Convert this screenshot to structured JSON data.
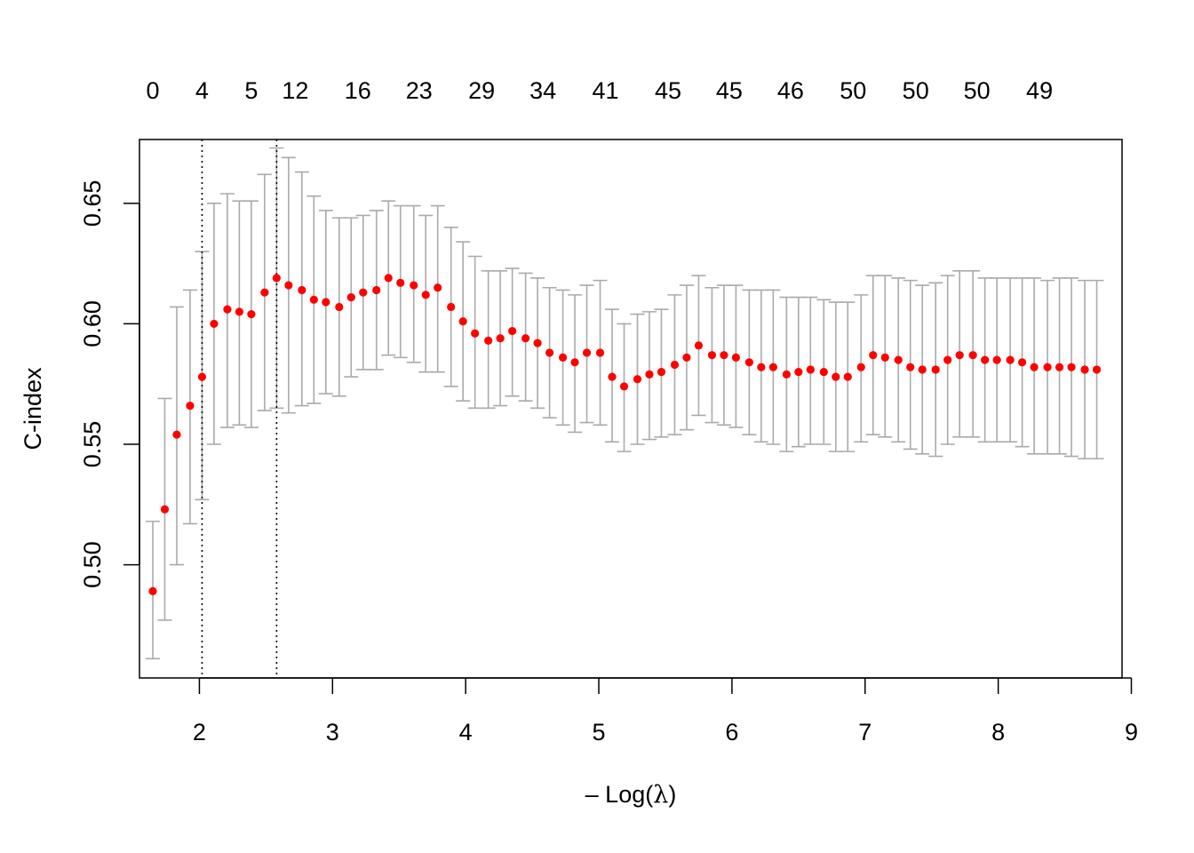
{
  "chart_data": {
    "type": "scatter",
    "xlabel_prefix": "– Log(",
    "xlabel_symbol": "λ",
    "xlabel_suffix": ")",
    "ylabel": "C-index",
    "xlim": [
      1.55,
      8.93
    ],
    "ylim": [
      0.453,
      0.6765
    ],
    "x_ticks": [
      2,
      3,
      4,
      5,
      6,
      7,
      8,
      9
    ],
    "y_ticks": [
      0.5,
      0.55,
      0.6,
      0.65
    ],
    "y_tick_labels": [
      "0.50",
      "0.55",
      "0.60",
      "0.65"
    ],
    "top_axis": {
      "x": [
        1.65,
        2.02,
        2.39,
        2.72,
        3.19,
        3.65,
        4.12,
        4.58,
        5.05,
        5.52,
        5.98,
        6.44,
        6.91,
        7.38,
        7.84,
        8.31
      ],
      "labels": [
        "0",
        "4",
        "5",
        "12",
        "16",
        "23",
        "29",
        "34",
        "41",
        "45",
        "45",
        "46",
        "50",
        "50",
        "50",
        "49"
      ]
    },
    "vlines": [
      2.02,
      2.58
    ],
    "point_color": "#ff0000",
    "errorbar_color": "#aaaaaa",
    "x": [
      1.65,
      1.74,
      1.83,
      1.93,
      2.02,
      2.11,
      2.21,
      2.3,
      2.39,
      2.49,
      2.58,
      2.67,
      2.77,
      2.86,
      2.95,
      3.05,
      3.14,
      3.23,
      3.33,
      3.42,
      3.51,
      3.61,
      3.7,
      3.79,
      3.89,
      3.98,
      4.07,
      4.17,
      4.26,
      4.35,
      4.45,
      4.54,
      4.63,
      4.73,
      4.82,
      4.91,
      5.01,
      5.1,
      5.19,
      5.29,
      5.38,
      5.47,
      5.57,
      5.66,
      5.75,
      5.85,
      5.94,
      6.03,
      6.13,
      6.22,
      6.31,
      6.41,
      6.5,
      6.59,
      6.69,
      6.78,
      6.87,
      6.97,
      7.06,
      7.15,
      7.25,
      7.34,
      7.43,
      7.53,
      7.62,
      7.71,
      7.81,
      7.9,
      7.99,
      8.09,
      8.18,
      8.27,
      8.37,
      8.46,
      8.55,
      8.65,
      8.74
    ],
    "y": [
      0.489,
      0.523,
      0.554,
      0.566,
      0.578,
      0.6,
      0.606,
      0.605,
      0.604,
      0.613,
      0.619,
      0.616,
      0.614,
      0.61,
      0.609,
      0.607,
      0.611,
      0.613,
      0.614,
      0.619,
      0.617,
      0.616,
      0.612,
      0.615,
      0.607,
      0.601,
      0.596,
      0.593,
      0.594,
      0.597,
      0.594,
      0.592,
      0.588,
      0.586,
      0.584,
      0.588,
      0.588,
      0.578,
      0.574,
      0.577,
      0.579,
      0.58,
      0.583,
      0.586,
      0.591,
      0.587,
      0.587,
      0.586,
      0.584,
      0.582,
      0.582,
      0.579,
      0.58,
      0.581,
      0.58,
      0.578,
      0.578,
      0.582,
      0.587,
      0.586,
      0.585,
      0.582,
      0.581,
      0.581,
      0.585,
      0.587,
      0.587,
      0.585,
      0.585,
      0.585,
      0.584,
      0.582,
      0.582,
      0.582,
      0.582,
      0.581,
      0.581
    ],
    "upper": [
      0.518,
      0.569,
      0.607,
      0.614,
      0.63,
      0.65,
      0.654,
      0.651,
      0.651,
      0.662,
      0.673,
      0.669,
      0.663,
      0.653,
      0.647,
      0.644,
      0.644,
      0.645,
      0.647,
      0.651,
      0.649,
      0.649,
      0.645,
      0.649,
      0.64,
      0.634,
      0.628,
      0.622,
      0.622,
      0.623,
      0.621,
      0.619,
      0.615,
      0.614,
      0.612,
      0.616,
      0.618,
      0.606,
      0.6,
      0.604,
      0.605,
      0.606,
      0.612,
      0.616,
      0.62,
      0.615,
      0.616,
      0.616,
      0.614,
      0.614,
      0.614,
      0.611,
      0.611,
      0.611,
      0.61,
      0.609,
      0.609,
      0.612,
      0.62,
      0.62,
      0.619,
      0.618,
      0.616,
      0.617,
      0.62,
      0.622,
      0.622,
      0.619,
      0.619,
      0.619,
      0.619,
      0.619,
      0.618,
      0.619,
      0.619,
      0.618,
      0.618
    ],
    "lower": [
      0.461,
      0.477,
      0.5,
      0.517,
      0.527,
      0.55,
      0.557,
      0.558,
      0.557,
      0.564,
      0.565,
      0.563,
      0.566,
      0.567,
      0.571,
      0.57,
      0.578,
      0.581,
      0.581,
      0.587,
      0.586,
      0.584,
      0.58,
      0.58,
      0.574,
      0.568,
      0.565,
      0.565,
      0.566,
      0.57,
      0.568,
      0.565,
      0.561,
      0.558,
      0.555,
      0.559,
      0.558,
      0.551,
      0.547,
      0.55,
      0.552,
      0.553,
      0.554,
      0.556,
      0.562,
      0.559,
      0.558,
      0.557,
      0.554,
      0.551,
      0.55,
      0.547,
      0.549,
      0.55,
      0.55,
      0.547,
      0.547,
      0.551,
      0.554,
      0.553,
      0.551,
      0.548,
      0.546,
      0.545,
      0.55,
      0.553,
      0.553,
      0.551,
      0.551,
      0.551,
      0.549,
      0.546,
      0.546,
      0.546,
      0.545,
      0.544,
      0.544
    ]
  }
}
